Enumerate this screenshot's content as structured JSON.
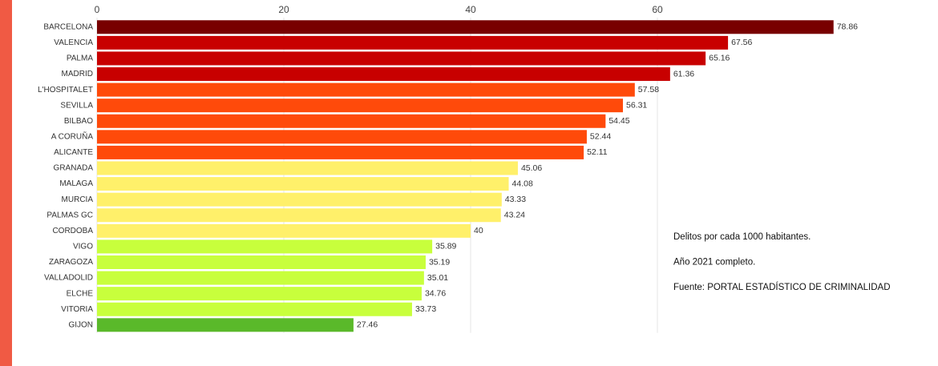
{
  "chart_data": {
    "type": "bar",
    "orientation": "horizontal",
    "categories": [
      "BARCELONA",
      "VALENCIA",
      "PALMA",
      "MADRID",
      "L'HOSPITALET",
      "SEVILLA",
      "BILBAO",
      "A CORUÑA",
      "ALICANTE",
      "GRANADA",
      "MALAGA",
      "MURCIA",
      "PALMAS GC",
      "CORDOBA",
      "VIGO",
      "ZARAGOZA",
      "VALLADOLID",
      "ELCHE",
      "VITORIA",
      "GIJON"
    ],
    "values": [
      78.86,
      67.56,
      65.16,
      61.36,
      57.58,
      56.31,
      54.45,
      52.44,
      52.11,
      45.06,
      44.08,
      43.33,
      43.24,
      40,
      35.89,
      35.19,
      35.01,
      34.76,
      33.73,
      27.46
    ],
    "colors": [
      "#780000",
      "#c80000",
      "#c80000",
      "#c80000",
      "#ff4a0a",
      "#ff4a0a",
      "#ff4a0a",
      "#ff4a0a",
      "#ff4a0a",
      "#fff06a",
      "#fff06a",
      "#fff06a",
      "#fff06a",
      "#fff06a",
      "#c8ff3c",
      "#c8ff3c",
      "#c8ff3c",
      "#c8ff3c",
      "#c8ff3c",
      "#5ab92a"
    ],
    "xlim": [
      0,
      80
    ],
    "xticks": [
      0,
      20,
      40,
      60
    ],
    "grid": true,
    "annotations": [
      "Delitos por cada 1000 habitantes.",
      "Año 2021 completo.",
      "Fuente: PORTAL ESTADÍSTICO DE CRIMINALIDAD"
    ]
  }
}
